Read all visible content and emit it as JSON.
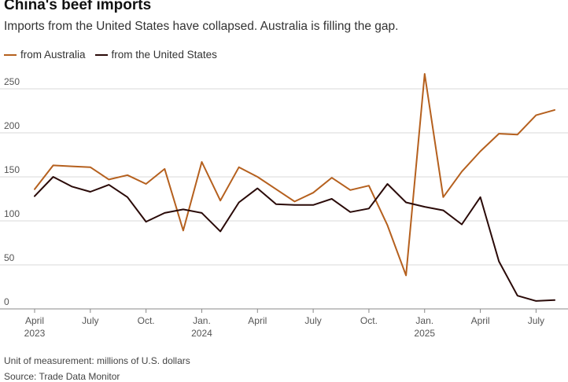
{
  "title": "China's beef imports",
  "subtitle": "Imports from the United States have collapsed. Australia is filling the gap.",
  "unit_note": "Unit of measurement: millions of U.S. dollars",
  "source_note": "Source: Trade Data Monitor",
  "colors": {
    "australia": "#b5601e",
    "united_states": "#2a0a08",
    "grid": "#d9d9d9",
    "axis": "#888888"
  },
  "chart_data": {
    "type": "line",
    "title": "China's beef imports",
    "ylim": [
      0,
      270
    ],
    "y_ticks": [
      0,
      50,
      100,
      150,
      200,
      250
    ],
    "x_ticks": [
      {
        "index": 0,
        "label": "April",
        "year": "2023"
      },
      {
        "index": 3,
        "label": "July",
        "year": ""
      },
      {
        "index": 6,
        "label": "Oct.",
        "year": ""
      },
      {
        "index": 9,
        "label": "Jan.",
        "year": "2024"
      },
      {
        "index": 12,
        "label": "April",
        "year": ""
      },
      {
        "index": 15,
        "label": "July",
        "year": ""
      },
      {
        "index": 18,
        "label": "Oct.",
        "year": ""
      },
      {
        "index": 21,
        "label": "Jan.",
        "year": "2025"
      },
      {
        "index": 24,
        "label": "April",
        "year": ""
      },
      {
        "index": 27,
        "label": "July",
        "year": ""
      }
    ],
    "x": [
      "2023-04",
      "2023-05",
      "2023-06",
      "2023-07",
      "2023-08",
      "2023-09",
      "2023-10",
      "2023-11",
      "2023-12",
      "2024-01",
      "2024-02",
      "2024-03",
      "2024-04",
      "2024-05",
      "2024-06",
      "2024-07",
      "2024-08",
      "2024-09",
      "2024-10",
      "2024-11",
      "2024-12",
      "2025-01",
      "2025-02",
      "2025-03",
      "2025-04",
      "2025-05",
      "2025-06",
      "2025-07",
      "2025-08"
    ],
    "series": [
      {
        "name": "from Australia",
        "color_key": "australia",
        "values": [
          136,
          163,
          162,
          161,
          147,
          152,
          142,
          159,
          89,
          167,
          123,
          161,
          150,
          136,
          122,
          132,
          149,
          135,
          140,
          95,
          38,
          267,
          127,
          156,
          179,
          199,
          198,
          220,
          226
        ]
      },
      {
        "name": "from the United States",
        "color_key": "united_states",
        "values": [
          128,
          150,
          139,
          133,
          141,
          127,
          99,
          109,
          113,
          109,
          88,
          121,
          137,
          119,
          118,
          118,
          125,
          110,
          114,
          142,
          121,
          116,
          112,
          96,
          127,
          54,
          15,
          9,
          10
        ]
      }
    ]
  }
}
